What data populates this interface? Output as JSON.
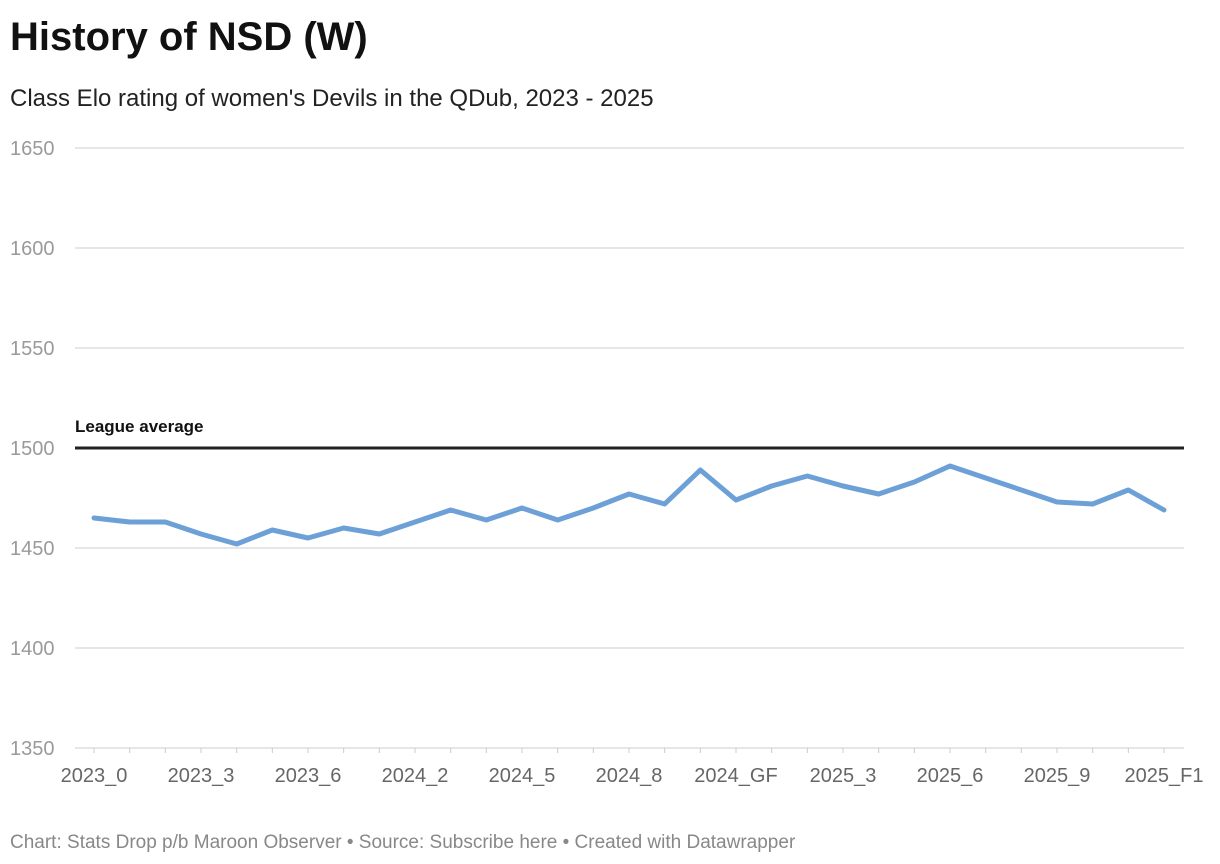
{
  "chart_data": {
    "type": "line",
    "title": "History of NSD (W)",
    "subtitle": "Class Elo rating of women's Devils in the QDub, 2023 - 2025",
    "categories": [
      "2023_0",
      null,
      null,
      "2023_3",
      null,
      null,
      "2023_6",
      null,
      null,
      "2024_2",
      null,
      null,
      "2024_5",
      null,
      null,
      "2024_8",
      null,
      null,
      "2024_GF",
      null,
      null,
      "2025_3",
      null,
      null,
      "2025_6",
      null,
      null,
      "2025_9",
      null,
      null,
      "2025_F1"
    ],
    "values": [
      1465,
      1463,
      1463,
      1457,
      1452,
      1459,
      1455,
      1460,
      1457,
      1463,
      1469,
      1464,
      1470,
      1464,
      1470,
      1477,
      1472,
      1489,
      1474,
      1481,
      1486,
      1481,
      1477,
      1483,
      1491,
      1485,
      1479,
      1473,
      1472,
      1479,
      1469
    ],
    "color": "#6ca0d6",
    "ylim": [
      1350,
      1650
    ],
    "yticks": [
      1350,
      1400,
      1450,
      1500,
      1550,
      1600,
      1650
    ],
    "grid": true,
    "reference_line": {
      "label": "League average",
      "value": 1500
    },
    "footer": "Chart: Stats Drop p/b Maroon Observer • Source: Subscribe here • Created with Datawrapper"
  }
}
